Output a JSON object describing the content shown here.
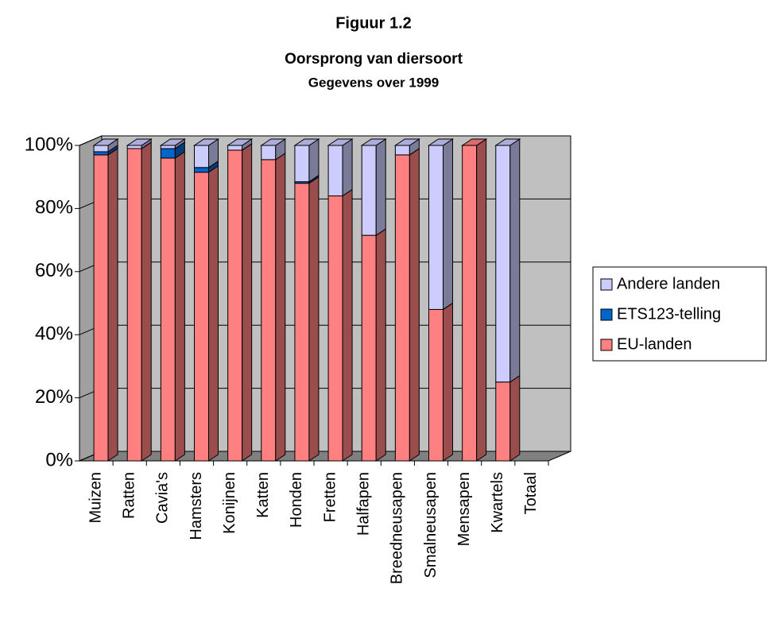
{
  "chart_data": {
    "type": "bar",
    "stacked": true,
    "title": "Figuur 1.2",
    "subtitle": "Oorsprong van diersoort",
    "note": "Gegevens over 1999",
    "categories": [
      "Muizen",
      "Ratten",
      "Cavia's",
      "Hamsters",
      "Konijnen",
      "Katten",
      "Honden",
      "Fretten",
      "Halfapen",
      "Breedneusapen",
      "Smalneusapen",
      "Mensapen",
      "Kwartels",
      "Totaal"
    ],
    "series": [
      {
        "name": "EU-landen",
        "color": "#ff8080",
        "values": [
          97,
          99,
          96,
          91.5,
          98.5,
          95.5,
          88,
          84,
          71.5,
          97,
          48,
          100,
          25,
          null
        ]
      },
      {
        "name": "ETS123-telling",
        "color": "#0066cc",
        "values": [
          1,
          0,
          3,
          1.5,
          0,
          0,
          0.5,
          0,
          0,
          0,
          0,
          0,
          0,
          null
        ]
      },
      {
        "name": "Andere landen",
        "color": "#ccccff",
        "values": [
          2,
          1,
          1,
          7,
          1.5,
          4.5,
          11.5,
          16,
          28.5,
          3,
          52,
          0,
          75,
          null
        ]
      }
    ],
    "ylim": [
      0,
      100
    ],
    "yticks": [
      {
        "value": 0,
        "label": "0%"
      },
      {
        "value": 20,
        "label": "20%"
      },
      {
        "value": 40,
        "label": "40%"
      },
      {
        "value": 60,
        "label": "60%"
      },
      {
        "value": 80,
        "label": "80%"
      },
      {
        "value": 100,
        "label": "100%"
      }
    ],
    "grid": true,
    "legend": "right"
  }
}
